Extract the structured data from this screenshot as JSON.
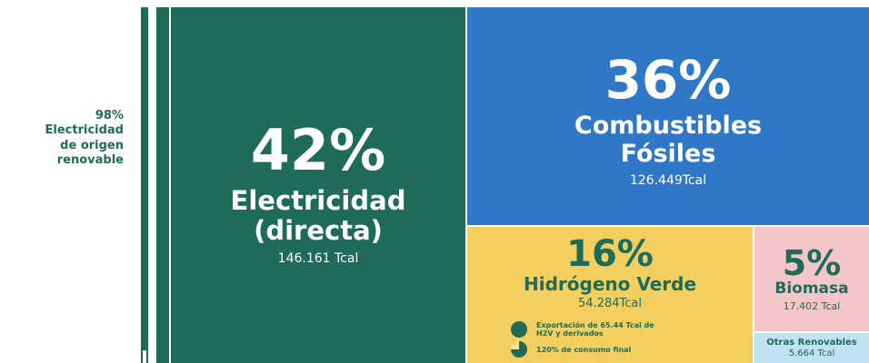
{
  "side_label": {
    "percent": "98%",
    "lines": [
      "Electricidad",
      "de origen",
      "renovable"
    ]
  },
  "tiles": [
    {
      "percent": "42%",
      "label_lines": [
        "Electricidad",
        "(directa)"
      ],
      "amount": "146.161 Tcal"
    },
    {
      "percent": "36%",
      "label_lines": [
        "Combustibles",
        "Fósiles"
      ],
      "amount": "126.449Tcal"
    },
    {
      "percent": "16%",
      "label_lines": [
        "Hidrógeno Verde"
      ],
      "amount": "54.284Tcal",
      "notes": [
        "Exportación de 65.44 Tcal de H2V y derivados",
        "120% de consumo final"
      ]
    },
    {
      "percent": "5%",
      "label_lines": [
        "Biomasa"
      ],
      "amount": "17.402 Tcal"
    },
    {
      "label_lines": [
        "Otras Renovables"
      ],
      "amount": "5.664 Tcal"
    }
  ]
}
